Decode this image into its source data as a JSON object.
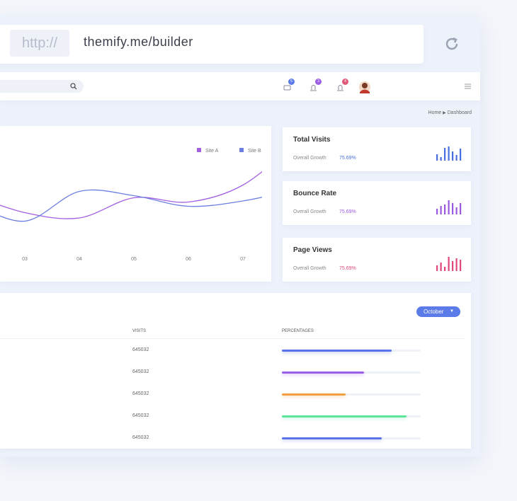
{
  "browser": {
    "protocol": "http://",
    "url": "themify.me/builder"
  },
  "navbar": {
    "badges": [
      5,
      3,
      4
    ]
  },
  "breadcrumb": [
    "Home",
    "Dashboard"
  ],
  "chart_data": {
    "type": "line",
    "categories": [
      null,
      "03",
      "04",
      "05",
      "06",
      "07",
      null
    ],
    "ylim": [
      0,
      100
    ],
    "series": [
      {
        "name": "Site A",
        "color": "#a35fe0",
        "values": [
          50,
          33,
          28,
          47,
          43,
          59,
          100
        ]
      },
      {
        "name": "Site B",
        "color": "#6b7fe0",
        "values": [
          43,
          25,
          53,
          49,
          39,
          44,
          55
        ]
      }
    ]
  },
  "stats": [
    {
      "title": "Total Visits",
      "label": "Overall Growth",
      "growth": "75.69%",
      "color": "#4a6fe0",
      "bars": [
        9,
        5,
        18,
        20,
        13,
        8,
        17
      ]
    },
    {
      "title": "Bounce Rate",
      "label": "Overall Growth",
      "growth": "75.69%",
      "color": "#9b59e0",
      "bars": [
        8,
        12,
        14,
        20,
        16,
        10,
        16
      ]
    },
    {
      "title": "Page Views",
      "label": "Overall Growth",
      "growth": "75.69%",
      "color": "#e0487a",
      "bars": [
        8,
        12,
        6,
        20,
        14,
        18,
        16
      ]
    }
  ],
  "table": {
    "dropdown": "October",
    "columns": [
      "VISITS",
      "PERCENTAGES"
    ],
    "rows": [
      {
        "visits": 645032,
        "percentage": 79,
        "color": "#5b73e8"
      },
      {
        "visits": 645032,
        "percentage": 59,
        "color": "#9b5fe6"
      },
      {
        "visits": 645032,
        "percentage": 46,
        "color": "#f0a040"
      },
      {
        "visits": 645032,
        "percentage": 90,
        "color": "#5de39a"
      },
      {
        "visits": 645032,
        "percentage": 72,
        "color": "#5b73e8"
      }
    ]
  }
}
